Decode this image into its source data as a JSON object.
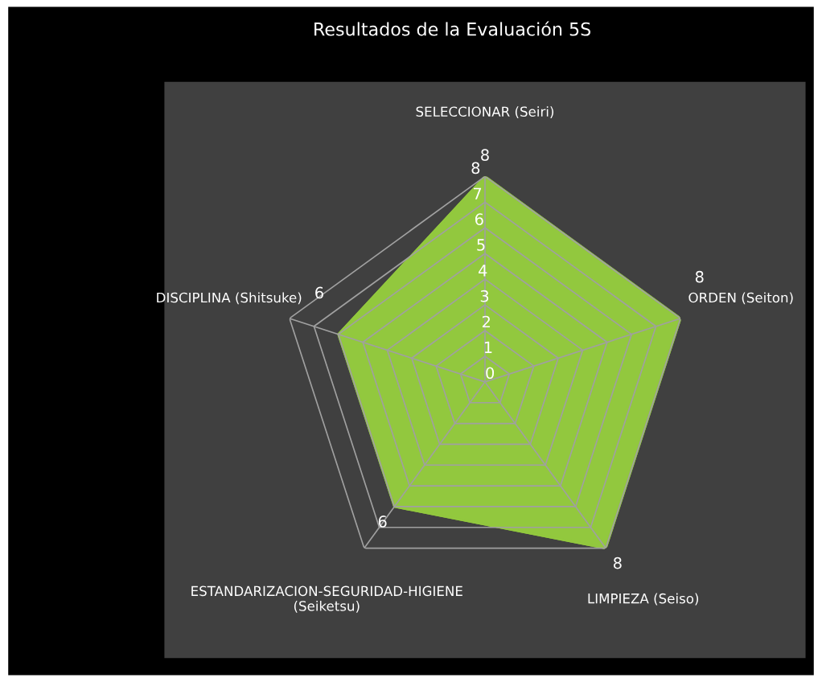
{
  "chart_data": {
    "type": "radar",
    "title": "Resultados de la Evaluación 5S",
    "categories": [
      "SELECCIONAR (Seiri)",
      "ORDEN (Seiton)",
      "LIMPIEZA (Seiso)",
      "ESTANDARIZACION-SEGURIDAD-HIGIENE\n(Seiketsu)",
      "DISCIPLINA (Shitsuke)"
    ],
    "series": [
      {
        "color": "#92c83e",
        "values": [
          8,
          8,
          8,
          6,
          6
        ]
      }
    ],
    "ylim": [
      0,
      8
    ],
    "yticks": [
      0,
      1,
      2,
      3,
      4,
      5,
      6,
      7,
      8
    ],
    "grid": true,
    "data_labels": true
  }
}
